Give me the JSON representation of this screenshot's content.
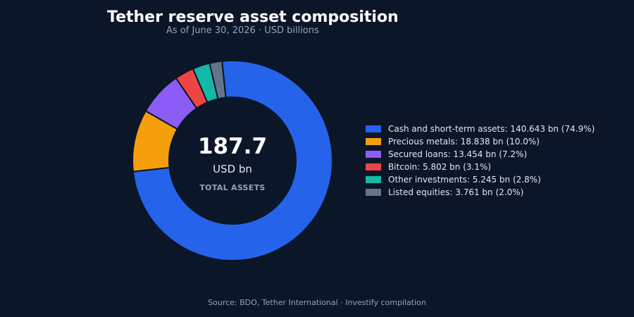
{
  "header": {
    "title": "Tether reserve asset composition",
    "subtitle": "As of June 30, 2026 · USD billions"
  },
  "center": {
    "value": "187.7",
    "unit": "USD bn",
    "caption": "TOTAL ASSETS"
  },
  "source": "Source: BDO, Tether International · Investify compilation",
  "chart_data": {
    "type": "pie",
    "title": "Tether reserve asset composition",
    "subtitle": "As of June 30, 2026 · USD billions",
    "total": 187.7,
    "categories": [
      "Cash and short-term assets",
      "Precious metals",
      "Secured loans",
      "Bitcoin",
      "Other investments",
      "Listed equities"
    ],
    "values": [
      140.643,
      18.838,
      13.454,
      5.802,
      5.245,
      3.761
    ],
    "percentages": [
      74.9,
      10.0,
      7.2,
      3.1,
      2.8,
      2.0
    ],
    "colors": [
      "#2563eb",
      "#f59e0b",
      "#8b5cf6",
      "#ef4444",
      "#14b8a6",
      "#64748b"
    ],
    "legend_entries": [
      "Cash and short-term assets: 140.643 bn (74.9%)",
      "Precious metals: 18.838 bn (10.0%)",
      "Secured loans: 13.454 bn (7.2%)",
      "Bitcoin: 5.802 bn (3.1%)",
      "Other investments: 5.245 bn (2.8%)",
      "Listed equities: 3.761 bn (2.0%)"
    ],
    "legend_position": "right",
    "hole": true
  }
}
